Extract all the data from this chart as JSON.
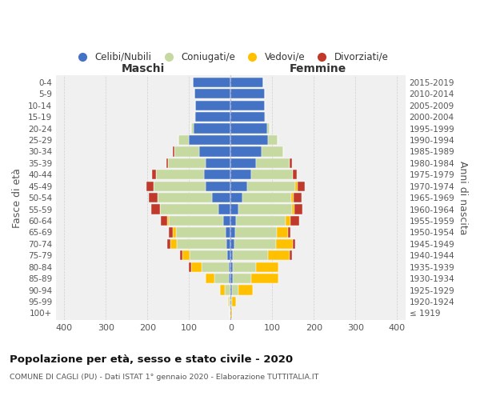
{
  "age_groups": [
    "100+",
    "95-99",
    "90-94",
    "85-89",
    "80-84",
    "75-79",
    "70-74",
    "65-69",
    "60-64",
    "55-59",
    "50-54",
    "45-49",
    "40-44",
    "35-39",
    "30-34",
    "25-29",
    "20-24",
    "15-19",
    "10-14",
    "5-9",
    "0-4"
  ],
  "birth_years": [
    "≤ 1919",
    "1920-1924",
    "1925-1929",
    "1930-1934",
    "1935-1939",
    "1940-1944",
    "1945-1949",
    "1950-1954",
    "1955-1959",
    "1960-1964",
    "1965-1969",
    "1970-1974",
    "1975-1979",
    "1980-1984",
    "1985-1989",
    "1990-1994",
    "1995-1999",
    "2000-2004",
    "2005-2009",
    "2010-2014",
    "2015-2019"
  ],
  "male_celibi": [
    0,
    0,
    0,
    5,
    5,
    8,
    10,
    12,
    18,
    30,
    45,
    60,
    65,
    60,
    75,
    100,
    90,
    85,
    85,
    88,
    92
  ],
  "male_coniugati": [
    2,
    5,
    15,
    35,
    65,
    90,
    120,
    120,
    130,
    140,
    130,
    125,
    115,
    90,
    60,
    25,
    5,
    2,
    0,
    0,
    0
  ],
  "male_vedovi": [
    0,
    2,
    10,
    20,
    25,
    18,
    15,
    8,
    5,
    0,
    0,
    0,
    0,
    0,
    0,
    0,
    0,
    0,
    0,
    0,
    0
  ],
  "male_divorziati": [
    0,
    0,
    0,
    0,
    5,
    5,
    8,
    8,
    15,
    22,
    22,
    18,
    10,
    5,
    5,
    0,
    0,
    0,
    0,
    0,
    0
  ],
  "female_nubili": [
    0,
    0,
    3,
    5,
    5,
    5,
    8,
    10,
    12,
    18,
    28,
    40,
    50,
    60,
    75,
    90,
    88,
    82,
    82,
    82,
    78
  ],
  "female_coniugate": [
    0,
    3,
    15,
    45,
    55,
    85,
    100,
    100,
    120,
    130,
    118,
    115,
    100,
    82,
    52,
    22,
    5,
    2,
    0,
    0,
    0
  ],
  "female_vedove": [
    3,
    10,
    35,
    65,
    55,
    52,
    42,
    28,
    12,
    5,
    5,
    5,
    0,
    0,
    0,
    0,
    0,
    0,
    0,
    0,
    0
  ],
  "female_divorziate": [
    0,
    0,
    0,
    0,
    0,
    5,
    5,
    5,
    20,
    20,
    20,
    18,
    8,
    5,
    0,
    0,
    0,
    0,
    0,
    0,
    0
  ],
  "colors": {
    "celibi": "#4472c4",
    "coniugati": "#c5d9a0",
    "vedovi": "#ffc000",
    "divorziati": "#c0392b"
  },
  "xlim": 420,
  "title": "Popolazione per età, sesso e stato civile - 2020",
  "subtitle": "COMUNE DI CAGLI (PU) - Dati ISTAT 1° gennaio 2020 - Elaborazione TUTTITALIA.IT",
  "ylabel_left": "Fasce di età",
  "ylabel_right": "Anni di nascita",
  "xlabel_left": "Maschi",
  "xlabel_right": "Femmine",
  "fig_bg": "#ffffff",
  "ax_bg": "#f0f0f0",
  "grid_color": "#cccccc",
  "legend_labels": [
    "Celibi/Nubili",
    "Coniugati/e",
    "Vedovi/e",
    "Divorziati/e"
  ]
}
